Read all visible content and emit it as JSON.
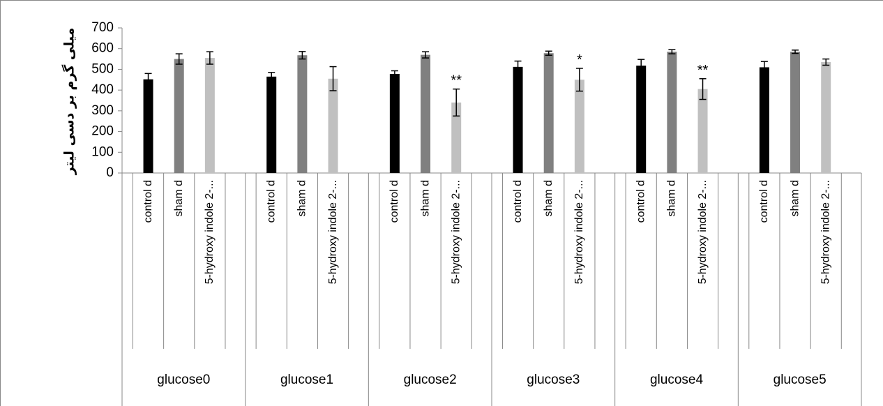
{
  "chart_data": {
    "type": "bar",
    "y_label": "میلی گرم بر دسی لیتر",
    "categories": [
      "glucose0",
      "glucose1",
      "glucose2",
      "glucose3",
      "glucose4",
      "glucose5"
    ],
    "series": [
      {
        "name": "control d",
        "color": "#000000",
        "values": [
          452,
          465,
          478,
          512,
          518,
          510
        ],
        "errors": [
          28,
          20,
          15,
          28,
          30,
          28
        ]
      },
      {
        "name": "sham d",
        "color": "#808080",
        "values": [
          550,
          568,
          570,
          578,
          585,
          585
        ],
        "errors": [
          25,
          18,
          15,
          10,
          10,
          8
        ]
      },
      {
        "name": "5-hydroxy indole 2-...",
        "color": "#c0c0c0",
        "values": [
          555,
          455,
          340,
          450,
          405,
          535
        ],
        "errors": [
          30,
          58,
          65,
          55,
          50,
          15
        ]
      }
    ],
    "annotations": [
      {
        "text": "**",
        "category": 2,
        "series": 2
      },
      {
        "text": "*",
        "category": 3,
        "series": 2
      },
      {
        "text": "**",
        "category": 4,
        "series": 2
      }
    ],
    "ylim": [
      0,
      700
    ],
    "yticks": [
      0,
      100,
      200,
      300,
      400,
      500,
      600,
      700
    ]
  }
}
